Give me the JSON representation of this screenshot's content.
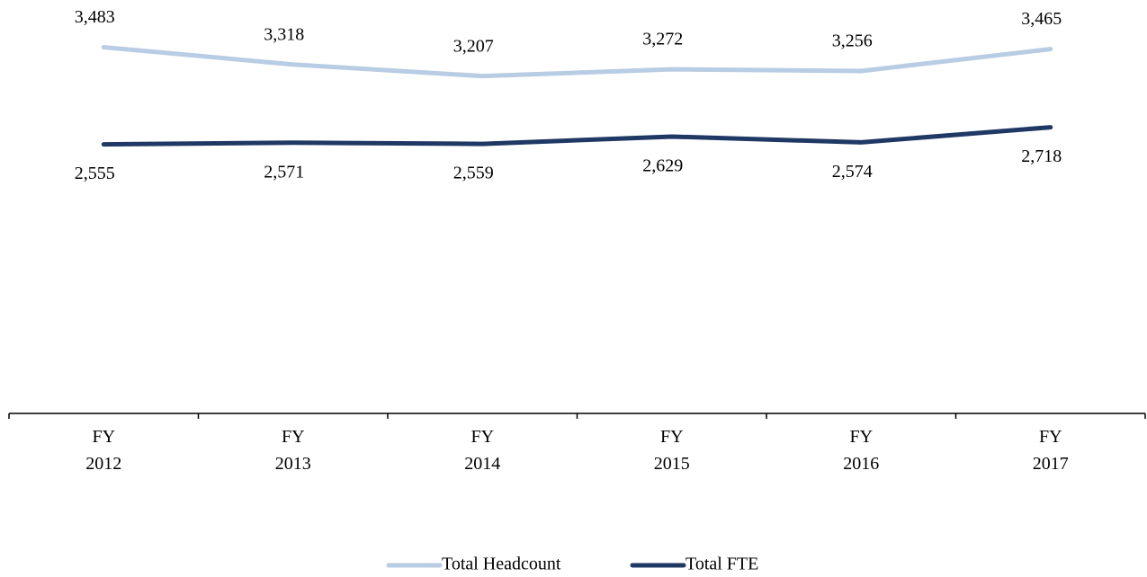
{
  "chart_data": {
    "type": "line",
    "categories": [
      "FY 2012",
      "FY 2013",
      "FY 2014",
      "FY 2015",
      "FY 2016",
      "FY 2017"
    ],
    "series": [
      {
        "name": "Total Headcount",
        "color": "#b8cce4",
        "values": [
          3483,
          3318,
          3207,
          3272,
          3256,
          3465
        ],
        "value_labels": [
          "3,483",
          "3,318",
          "3,207",
          "3,272",
          "3,256",
          "3,465"
        ],
        "label_position": "above"
      },
      {
        "name": "Total FTE",
        "color": "#1f3864",
        "values": [
          2555,
          2571,
          2559,
          2629,
          2574,
          2718
        ],
        "value_labels": [
          "2,555",
          "2,571",
          "2,559",
          "2,629",
          "2,574",
          "2,718"
        ],
        "label_position": "below"
      }
    ],
    "ylim": [
      0,
      3900
    ],
    "legend": "bottom"
  }
}
